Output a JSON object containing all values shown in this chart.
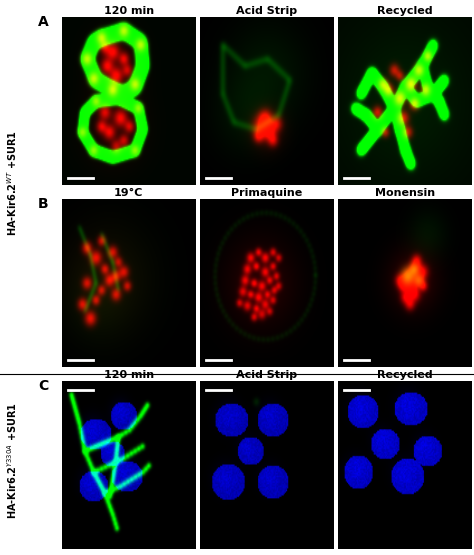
{
  "figure_width": 4.74,
  "figure_height": 5.55,
  "dpi": 100,
  "background_color": "#ffffff",
  "row_A_titles": [
    "120 min",
    "Acid Strip",
    "Recycled"
  ],
  "row_B_titles": [
    "19°C",
    "Primaquine",
    "Monensin"
  ],
  "row_C_titles": [
    "120 min",
    "Acid Strip",
    "Recycled"
  ],
  "title_fontsize": 8,
  "panel_label_fontsize": 10,
  "side_label_fontsize": 7
}
